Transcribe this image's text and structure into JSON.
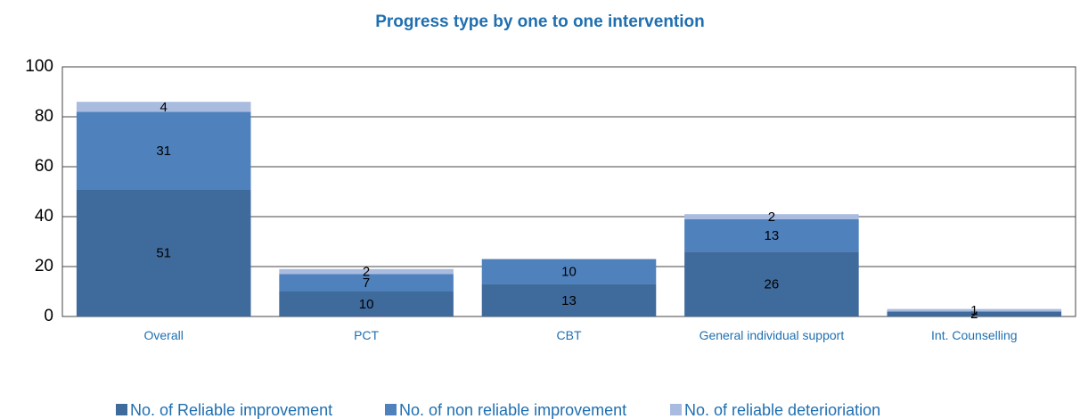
{
  "chart_data": {
    "type": "stacked-bar",
    "title": "Progress type by one to one intervention",
    "categories": [
      "Overall",
      "PCT",
      "CBT",
      "General individual support",
      "Int. Counselling"
    ],
    "series": [
      {
        "name": "No. of Reliable improvement",
        "color": "#3f6a9c",
        "values": [
          51,
          10,
          13,
          26,
          2
        ]
      },
      {
        "name": "No. of non reliable improvement",
        "color": "#4f81bd",
        "values": [
          31,
          7,
          10,
          13,
          null
        ]
      },
      {
        "name": "No. of reliable deterioriation",
        "color": "#a9bbdf",
        "values": [
          4,
          2,
          null,
          2,
          1
        ]
      }
    ],
    "ylim": [
      0,
      100
    ],
    "yticks": [
      0,
      20,
      40,
      60,
      80,
      100
    ],
    "grid": true,
    "legend": "bottom"
  }
}
